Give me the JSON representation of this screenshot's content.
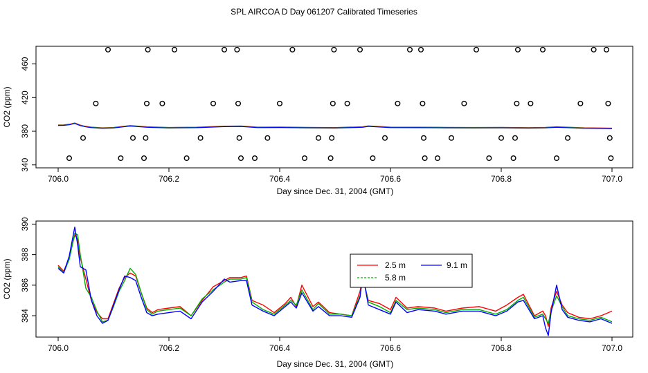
{
  "title": "SPL AIRCOA D  Day 061207  Calibrated Timeseries",
  "chart_data": [
    {
      "type": "line",
      "xlabel": "Day since Dec. 31, 2004 (GMT)",
      "ylabel": "CO2 (ppm)",
      "xlim": [
        706.0,
        707.0
      ],
      "ylim": [
        336.5,
        481
      ],
      "xticks": [
        "706.0",
        "706.2",
        "706.4",
        "706.6",
        "706.8",
        "707.0"
      ],
      "yticks": [
        "340",
        "380",
        "420",
        "460"
      ],
      "x_tick_values": [
        706.0,
        706.2,
        706.4,
        706.6,
        706.8,
        707.0
      ],
      "y_tick_values": [
        340,
        380,
        420,
        460
      ],
      "line": {
        "x": [
          706.0,
          706.01,
          706.02,
          706.03,
          706.04,
          706.05,
          706.06,
          706.08,
          706.1,
          706.13,
          706.16,
          706.2,
          706.25,
          706.3,
          706.33,
          706.36,
          706.4,
          706.45,
          706.5,
          706.55,
          706.56,
          706.6,
          706.65,
          706.7,
          706.75,
          706.8,
          706.85,
          706.88,
          706.9,
          706.95,
          707.0
        ],
        "y": [
          387.2,
          387.3,
          388.0,
          389.5,
          387.0,
          385.5,
          384.6,
          383.8,
          384.2,
          386.5,
          385.0,
          384.2,
          384.5,
          385.8,
          386.0,
          384.6,
          384.8,
          384.4,
          384.1,
          385.0,
          386.1,
          384.6,
          384.5,
          384.4,
          384.2,
          384.3,
          384.0,
          384.3,
          385.0,
          383.8,
          383.4
        ]
      },
      "calibration_points": {
        "x": [
          706.02,
          706.045,
          706.068,
          706.09,
          706.113,
          706.135,
          706.155,
          706.158,
          706.16,
          706.162,
          706.188,
          706.21,
          706.232,
          706.257,
          706.28,
          706.3,
          706.323,
          706.325,
          706.327,
          706.33,
          706.355,
          706.378,
          706.4,
          706.423,
          706.445,
          706.47,
          706.492,
          706.494,
          706.496,
          706.498,
          706.522,
          706.545,
          706.568,
          706.59,
          706.613,
          706.635,
          706.655,
          706.658,
          706.66,
          706.662,
          706.685,
          706.71,
          706.733,
          706.755,
          706.778,
          706.8,
          706.822,
          706.825,
          706.828,
          706.83,
          706.853,
          706.875,
          706.9,
          706.92,
          706.943,
          706.967,
          706.99,
          706.993,
          706.996,
          706.998
        ],
        "y": [
          348,
          372,
          413,
          477,
          348,
          372,
          348,
          372,
          413,
          477,
          413,
          477,
          348,
          372,
          413,
          477,
          477,
          413,
          372,
          348,
          348,
          372,
          413,
          477,
          348,
          372,
          348,
          372,
          413,
          477,
          413,
          477,
          348,
          372,
          413,
          477,
          477,
          413,
          372,
          348,
          348,
          372,
          413,
          477,
          348,
          372,
          348,
          372,
          413,
          477,
          413,
          477,
          348,
          372,
          413,
          477,
          477,
          413,
          372,
          348
        ]
      }
    },
    {
      "type": "line",
      "xlabel": "Day since Dec. 31, 2004 (GMT)",
      "ylabel": "CO2 (ppm)",
      "xlim": [
        706.0,
        707.0
      ],
      "ylim": [
        382.6,
        390.2
      ],
      "xticks": [
        "706.0",
        "706.2",
        "706.4",
        "706.6",
        "706.8",
        "707.0"
      ],
      "yticks": [
        "384",
        "386",
        "388",
        "390"
      ],
      "x_tick_values": [
        706.0,
        706.2,
        706.4,
        706.6,
        706.8,
        707.0
      ],
      "y_tick_values": [
        384,
        386,
        388,
        390
      ],
      "legend": [
        "2.5 m",
        "5.8 m",
        "9.1 m"
      ],
      "series": [
        {
          "name": "2.5 m",
          "color": "#ff0000",
          "x": [
            706.0,
            706.01,
            706.02,
            706.03,
            706.035,
            706.04,
            706.05,
            706.06,
            706.07,
            706.08,
            706.09,
            706.1,
            706.11,
            706.12,
            706.13,
            706.14,
            706.15,
            706.16,
            706.17,
            706.18,
            706.2,
            706.22,
            706.24,
            706.26,
            706.28,
            706.3,
            706.31,
            706.33,
            706.34,
            706.35,
            706.37,
            706.39,
            706.41,
            706.42,
            706.43,
            706.44,
            706.46,
            706.47,
            706.49,
            706.51,
            706.53,
            706.545,
            706.55,
            706.56,
            706.58,
            706.6,
            706.61,
            706.63,
            706.65,
            706.68,
            706.7,
            706.73,
            706.76,
            706.79,
            706.81,
            706.83,
            706.84,
            706.86,
            706.875,
            706.88,
            706.885,
            706.89,
            706.9,
            706.91,
            706.92,
            706.94,
            706.96,
            706.98,
            707.0
          ],
          "y": [
            387.3,
            386.9,
            387.8,
            389.3,
            389.0,
            387.8,
            386.4,
            385.0,
            384.2,
            383.8,
            383.8,
            384.8,
            385.8,
            386.5,
            386.8,
            386.6,
            385.5,
            384.5,
            384.2,
            384.4,
            384.5,
            384.6,
            384.0,
            385.0,
            385.9,
            386.3,
            386.5,
            386.5,
            386.6,
            385.0,
            384.7,
            384.2,
            384.8,
            385.2,
            384.6,
            386.0,
            384.6,
            384.9,
            384.2,
            384.1,
            384.0,
            385.6,
            386.5,
            385.0,
            384.8,
            384.4,
            385.2,
            384.5,
            384.6,
            384.5,
            384.3,
            384.5,
            384.6,
            384.3,
            384.7,
            385.2,
            385.4,
            384.0,
            384.3,
            384.0,
            383.3,
            384.5,
            385.6,
            384.7,
            384.2,
            383.9,
            383.8,
            384.0,
            384.3
          ]
        },
        {
          "name": "5.8 m",
          "color": "#00b000",
          "x": [
            706.0,
            706.01,
            706.02,
            706.03,
            706.035,
            706.04,
            706.05,
            706.06,
            706.07,
            706.08,
            706.09,
            706.1,
            706.11,
            706.12,
            706.13,
            706.14,
            706.15,
            706.16,
            706.17,
            706.18,
            706.2,
            706.22,
            706.24,
            706.26,
            706.28,
            706.3,
            706.31,
            706.33,
            706.34,
            706.35,
            706.37,
            706.39,
            706.41,
            706.42,
            706.43,
            706.44,
            706.46,
            706.47,
            706.49,
            706.51,
            706.53,
            706.545,
            706.55,
            706.56,
            706.58,
            706.6,
            706.61,
            706.63,
            706.65,
            706.68,
            706.7,
            706.73,
            706.76,
            706.79,
            706.81,
            706.83,
            706.84,
            706.86,
            706.875,
            706.88,
            706.885,
            706.89,
            706.9,
            706.91,
            706.92,
            706.94,
            706.96,
            706.98,
            707.0
          ],
          "y": [
            387.2,
            386.8,
            387.7,
            389.4,
            389.3,
            388.0,
            385.8,
            385.2,
            384.3,
            383.6,
            383.7,
            384.6,
            385.6,
            386.3,
            387.1,
            386.7,
            385.5,
            384.4,
            384.1,
            384.3,
            384.4,
            384.5,
            384.0,
            385.1,
            385.7,
            386.2,
            386.4,
            386.4,
            386.5,
            384.9,
            384.4,
            384.1,
            384.7,
            385.0,
            384.7,
            385.7,
            384.4,
            384.8,
            384.1,
            384.1,
            384.0,
            385.3,
            386.6,
            384.9,
            384.6,
            384.2,
            385.0,
            384.4,
            384.5,
            384.4,
            384.2,
            384.4,
            384.4,
            384.1,
            384.4,
            385.0,
            385.2,
            383.9,
            384.1,
            383.8,
            383.5,
            384.3,
            385.3,
            384.6,
            384.0,
            383.8,
            383.7,
            383.9,
            383.6
          ]
        },
        {
          "name": "9.1 m",
          "color": "#0000ff",
          "x": [
            706.0,
            706.01,
            706.02,
            706.03,
            706.035,
            706.04,
            706.05,
            706.06,
            706.07,
            706.08,
            706.09,
            706.1,
            706.11,
            706.12,
            706.13,
            706.14,
            706.15,
            706.16,
            706.17,
            706.18,
            706.2,
            706.22,
            706.24,
            706.26,
            706.28,
            706.3,
            706.31,
            706.33,
            706.34,
            706.35,
            706.37,
            706.39,
            706.41,
            706.42,
            706.43,
            706.44,
            706.46,
            706.47,
            706.49,
            706.51,
            706.53,
            706.545,
            706.55,
            706.56,
            706.58,
            706.6,
            706.61,
            706.63,
            706.65,
            706.68,
            706.7,
            706.73,
            706.76,
            706.79,
            706.81,
            706.83,
            706.84,
            706.86,
            706.875,
            706.88,
            706.885,
            706.89,
            706.9,
            706.91,
            706.92,
            706.94,
            706.96,
            706.98,
            707.0
          ],
          "y": [
            387.1,
            386.8,
            387.9,
            389.8,
            388.7,
            387.2,
            387.0,
            385.0,
            384.0,
            383.5,
            383.7,
            384.7,
            385.7,
            386.6,
            386.5,
            386.3,
            385.2,
            384.2,
            384.0,
            384.1,
            384.2,
            384.3,
            383.8,
            384.9,
            385.6,
            386.4,
            386.2,
            386.3,
            386.3,
            384.7,
            384.3,
            384.0,
            384.6,
            384.9,
            384.5,
            385.5,
            384.3,
            384.6,
            384.0,
            384.0,
            383.9,
            385.2,
            386.7,
            384.7,
            384.4,
            384.1,
            384.9,
            384.2,
            384.4,
            384.3,
            384.1,
            384.3,
            384.3,
            384.0,
            384.3,
            384.9,
            385.0,
            383.8,
            384.0,
            383.2,
            382.7,
            384.2,
            386.0,
            384.4,
            383.9,
            383.7,
            383.6,
            383.8,
            383.5
          ]
        }
      ]
    }
  ]
}
